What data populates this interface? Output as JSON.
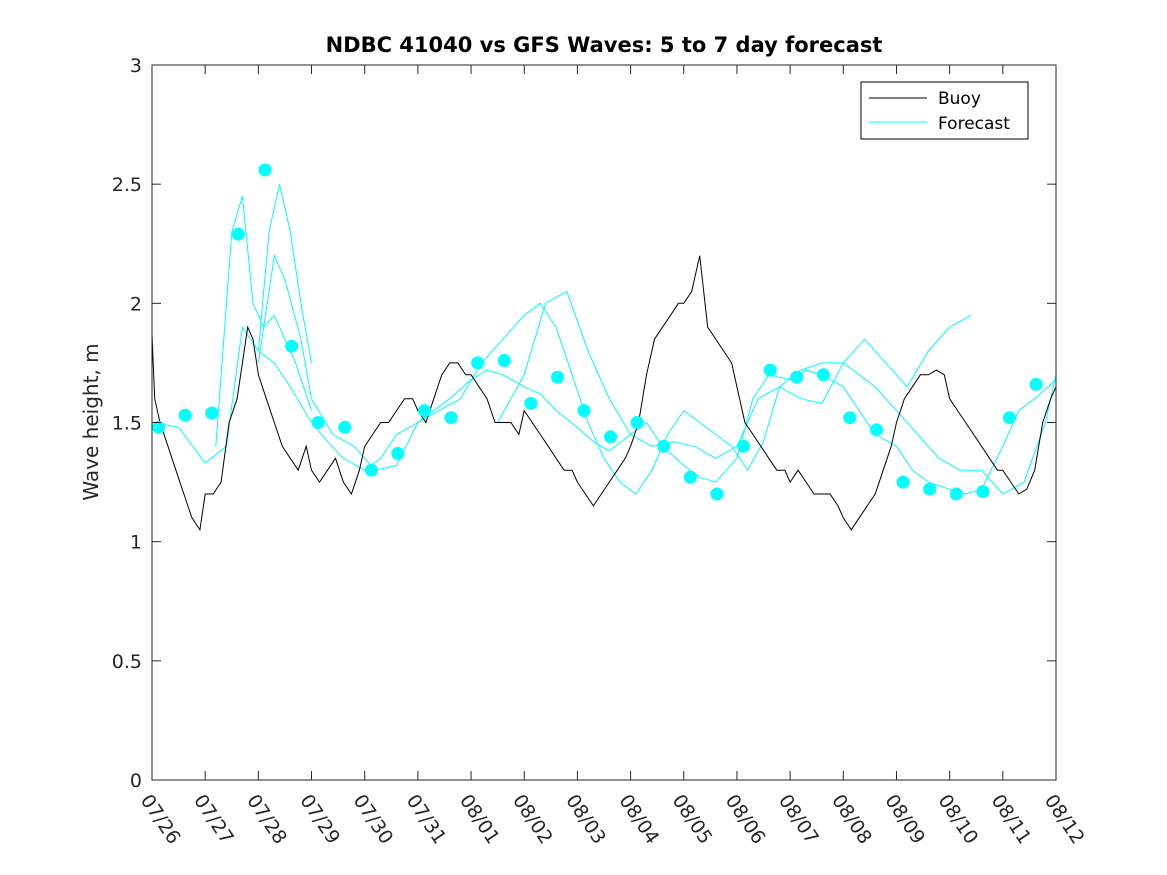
{
  "chart_data": {
    "type": "line",
    "title": "NDBC 41040 vs GFS Waves: 5 to 7 day forecast",
    "xlabel": "",
    "ylabel": "Wave height, m",
    "ylim": [
      0,
      3
    ],
    "yticks": [
      "0",
      "0.5",
      "1",
      "1.5",
      "2",
      "2.5",
      "3"
    ],
    "xticks": [
      "07/26",
      "07/27",
      "07/28",
      "07/29",
      "07/30",
      "07/31",
      "08/01",
      "08/02",
      "08/03",
      "08/04",
      "08/05",
      "08/06",
      "08/07",
      "08/08",
      "08/09",
      "08/10",
      "08/11",
      "08/12"
    ],
    "grid": false,
    "legend_position": "top-right",
    "colors": {
      "buoy": "#000000",
      "forecast": "#00ffff"
    },
    "series": [
      {
        "name": "Buoy",
        "style": "line",
        "x_unit": "days after 07/26 00Z",
        "x": [
          0.0,
          0.05,
          0.15,
          0.3,
          0.45,
          0.6,
          0.75,
          0.9,
          1.0,
          1.15,
          1.3,
          1.45,
          1.6,
          1.7,
          1.8,
          1.9,
          2.0,
          2.15,
          2.3,
          2.45,
          2.6,
          2.75,
          2.9,
          3.0,
          3.15,
          3.3,
          3.45,
          3.6,
          3.75,
          3.9,
          4.0,
          4.15,
          4.3,
          4.45,
          4.6,
          4.75,
          4.9,
          5.0,
          5.15,
          5.3,
          5.45,
          5.6,
          5.75,
          5.9,
          6.0,
          6.15,
          6.3,
          6.45,
          6.6,
          6.75,
          6.9,
          7.0,
          7.15,
          7.3,
          7.45,
          7.6,
          7.75,
          7.9,
          8.0,
          8.15,
          8.3,
          8.45,
          8.6,
          8.75,
          8.9,
          9.0,
          9.15,
          9.3,
          9.45,
          9.6,
          9.75,
          9.9,
          10.0,
          10.15,
          10.3,
          10.45,
          10.6,
          10.75,
          10.9,
          11.0,
          11.15,
          11.3,
          11.45,
          11.6,
          11.75,
          11.9,
          12.0,
          12.15,
          12.3,
          12.45,
          12.6,
          12.75,
          12.9,
          13.0,
          13.15,
          13.3,
          13.45,
          13.6,
          13.75,
          13.9,
          14.0,
          14.15,
          14.3,
          14.45,
          14.6,
          14.75,
          14.9,
          15.0,
          15.15,
          15.3,
          15.45,
          15.6,
          15.75,
          15.9,
          16.0,
          16.15,
          16.3,
          16.45,
          16.6,
          16.75,
          16.9,
          17.0
        ],
        "values": [
          1.87,
          1.6,
          1.5,
          1.4,
          1.3,
          1.2,
          1.1,
          1.05,
          1.2,
          1.2,
          1.25,
          1.5,
          1.6,
          1.75,
          1.9,
          1.85,
          1.7,
          1.6,
          1.5,
          1.4,
          1.35,
          1.3,
          1.4,
          1.3,
          1.25,
          1.3,
          1.35,
          1.25,
          1.2,
          1.3,
          1.4,
          1.45,
          1.5,
          1.5,
          1.55,
          1.6,
          1.6,
          1.55,
          1.5,
          1.6,
          1.7,
          1.75,
          1.75,
          1.7,
          1.7,
          1.65,
          1.6,
          1.5,
          1.5,
          1.5,
          1.45,
          1.55,
          1.5,
          1.45,
          1.4,
          1.35,
          1.3,
          1.3,
          1.25,
          1.2,
          1.15,
          1.2,
          1.25,
          1.3,
          1.35,
          1.4,
          1.5,
          1.7,
          1.85,
          1.9,
          1.95,
          2.0,
          2.0,
          2.05,
          2.2,
          1.9,
          1.85,
          1.8,
          1.75,
          1.65,
          1.5,
          1.45,
          1.4,
          1.35,
          1.3,
          1.3,
          1.25,
          1.3,
          1.25,
          1.2,
          1.2,
          1.2,
          1.15,
          1.1,
          1.05,
          1.1,
          1.15,
          1.2,
          1.3,
          1.4,
          1.5,
          1.6,
          1.65,
          1.7,
          1.7,
          1.72,
          1.7,
          1.6,
          1.55,
          1.5,
          1.45,
          1.4,
          1.35,
          1.3,
          1.3,
          1.25,
          1.2,
          1.22,
          1.3,
          1.5,
          1.6,
          1.65
        ]
      },
      {
        "name": "Forecast",
        "style": "markers",
        "x_unit": "days after 07/26 00Z",
        "x": [
          0.125,
          0.625,
          1.125,
          1.625,
          2.125,
          2.625,
          3.125,
          3.625,
          4.125,
          4.625,
          5.125,
          5.625,
          6.125,
          6.625,
          7.125,
          7.625,
          8.125,
          8.625,
          9.125,
          9.625,
          10.125,
          10.625,
          11.125,
          11.625,
          12.125,
          12.625,
          13.125,
          13.625,
          14.125,
          14.625,
          15.125,
          15.625,
          16.125,
          16.625
        ],
        "values": [
          1.48,
          1.53,
          1.54,
          2.29,
          2.56,
          1.82,
          1.5,
          1.48,
          1.3,
          1.37,
          1.55,
          1.52,
          1.75,
          1.76,
          1.58,
          1.69,
          1.55,
          1.44,
          1.5,
          1.4,
          1.27,
          1.2,
          1.4,
          1.72,
          1.69,
          1.7,
          1.52,
          1.47,
          1.25,
          1.22,
          1.2,
          1.21,
          1.52,
          1.66
        ]
      },
      {
        "name": "",
        "style": "line",
        "color": "forecast",
        "x": [
          0.0,
          0.5,
          1.0,
          1.4,
          1.7,
          2.0,
          2.3,
          2.6,
          3.0,
          3.3,
          3.6,
          4.0,
          4.3,
          4.6,
          5.0,
          5.3,
          5.6,
          6.0,
          6.3,
          6.6,
          7.0,
          7.3,
          7.6,
          8.0,
          8.3,
          8.6,
          9.0,
          9.3,
          9.6,
          10.0,
          10.3,
          10.6,
          11.0,
          11.3,
          11.6,
          12.0,
          12.3,
          12.6,
          13.0,
          13.3,
          13.6,
          14.0,
          14.3,
          14.6,
          15.0,
          15.3,
          15.6,
          16.0,
          16.3,
          16.6,
          17.0
        ],
        "values": [
          1.5,
          1.48,
          1.33,
          1.4,
          1.9,
          1.8,
          1.75,
          1.65,
          1.5,
          1.42,
          1.35,
          1.3,
          1.35,
          1.45,
          1.5,
          1.55,
          1.6,
          1.68,
          1.72,
          1.7,
          1.65,
          1.62,
          1.55,
          1.48,
          1.42,
          1.38,
          1.45,
          1.5,
          1.4,
          1.32,
          1.27,
          1.25,
          1.35,
          1.6,
          1.7,
          1.68,
          1.72,
          1.7,
          1.65,
          1.55,
          1.45,
          1.4,
          1.3,
          1.25,
          1.22,
          1.2,
          1.22,
          1.4,
          1.55,
          1.6,
          1.68
        ]
      },
      {
        "name": "",
        "style": "line",
        "color": "forecast",
        "x": [
          1.2,
          1.5,
          1.7,
          1.9,
          2.1,
          2.3,
          2.5,
          2.7,
          3.0
        ],
        "values": [
          1.4,
          2.3,
          2.45,
          2.0,
          1.9,
          1.95,
          1.85,
          1.75,
          1.55
        ]
      },
      {
        "name": "",
        "style": "line",
        "color": "forecast",
        "x": [
          2.0,
          2.2,
          2.4,
          2.6,
          2.8,
          3.0
        ],
        "values": [
          1.8,
          2.3,
          2.5,
          2.3,
          2.0,
          1.75
        ]
      },
      {
        "name": "",
        "style": "line",
        "color": "forecast",
        "x": [
          2.0,
          2.3,
          2.5,
          2.8,
          3.0,
          3.4,
          3.8,
          4.2,
          4.6,
          5.0,
          5.4,
          5.8,
          6.2,
          6.6,
          7.0,
          7.3,
          7.6,
          7.9,
          8.2,
          8.5,
          8.8,
          9.1,
          9.4,
          9.7,
          10.0,
          10.3,
          10.6,
          10.9,
          11.2,
          11.5,
          11.8,
          12.2,
          12.6,
          13.0,
          13.3,
          13.6,
          14.0,
          14.4,
          14.8,
          15.2,
          15.6,
          16.0,
          16.4,
          16.8,
          17.0
        ],
        "values": [
          1.75,
          2.2,
          2.1,
          1.85,
          1.6,
          1.45,
          1.4,
          1.3,
          1.32,
          1.5,
          1.55,
          1.6,
          1.75,
          1.85,
          1.95,
          2.0,
          1.9,
          1.7,
          1.5,
          1.35,
          1.25,
          1.2,
          1.3,
          1.45,
          1.55,
          1.5,
          1.45,
          1.4,
          1.3,
          1.42,
          1.65,
          1.72,
          1.75,
          1.75,
          1.7,
          1.65,
          1.55,
          1.45,
          1.35,
          1.3,
          1.3,
          1.2,
          1.25,
          1.5,
          1.7
        ]
      },
      {
        "name": "",
        "style": "line",
        "color": "forecast",
        "x": [
          6.5,
          7.0,
          7.4,
          7.8,
          8.2,
          8.6,
          9.0,
          9.4,
          9.8,
          10.2,
          10.6,
          11.0,
          11.4,
          11.8,
          12.2,
          12.6,
          13.0,
          13.4,
          13.8,
          14.2,
          14.6,
          15.0,
          15.4
        ],
        "values": [
          1.5,
          1.7,
          2.0,
          2.05,
          1.8,
          1.6,
          1.45,
          1.4,
          1.42,
          1.4,
          1.35,
          1.4,
          1.6,
          1.65,
          1.6,
          1.58,
          1.75,
          1.85,
          1.75,
          1.65,
          1.8,
          1.9,
          1.95
        ]
      }
    ]
  }
}
